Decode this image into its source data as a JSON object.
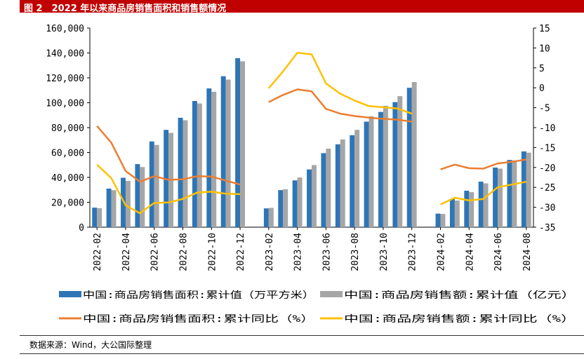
{
  "header": {
    "title": "图 2　2022 年以来商品房销售面积和销售额情况"
  },
  "footer": {
    "source": "数据来源：Wind，大公国际整理"
  },
  "colors": {
    "title_bar": "#c00000",
    "area_bar": "#2e75b6",
    "sales_bar": "#a6a6a6",
    "area_line": "#ed7d31",
    "sales_line": "#ffc000"
  },
  "chart_data": {
    "type": "bar",
    "title": "",
    "x_labels": [
      "2022-02",
      "2022-04",
      "2022-06",
      "2022-08",
      "2022-10",
      "2022-12",
      "2023-02",
      "2023-04",
      "2023-06",
      "2023-08",
      "2023-10",
      "2023-12",
      "2024-02",
      "2024-04",
      "2024-06",
      "2024-08"
    ],
    "x": [
      "2022-02",
      "2022-03",
      "2022-04",
      "2022-05",
      "2022-06",
      "2022-07",
      "2022-08",
      "2022-09",
      "2022-10",
      "2022-11",
      "2022-12",
      "2023-01",
      "2023-02",
      "2023-03",
      "2023-04",
      "2023-05",
      "2023-06",
      "2023-07",
      "2023-08",
      "2023-09",
      "2023-10",
      "2023-11",
      "2023-12",
      "2024-01",
      "2024-02",
      "2024-03",
      "2024-04",
      "2024-05",
      "2024-06",
      "2024-07",
      "2024-08"
    ],
    "y_left": {
      "ticks": [
        "0",
        "20,000",
        "40,000",
        "60,000",
        "80,000",
        "100,000",
        "120,000",
        "140,000",
        "160,000"
      ],
      "range": [
        0,
        160000
      ]
    },
    "y_right": {
      "ticks": [
        "15",
        "10",
        "5",
        "0",
        "-5",
        "-10",
        "-15",
        "-20",
        "-25",
        "-30",
        "-35"
      ],
      "range": [
        -35,
        15
      ]
    },
    "legend_position": "bottom",
    "series": [
      {
        "name": "中国:商品房销售面积:累计值（万平方米）",
        "type": "bar",
        "axis": "left",
        "values": [
          15700,
          31000,
          39700,
          50700,
          68900,
          78200,
          87900,
          101400,
          111500,
          121300,
          135800,
          null,
          15100,
          29800,
          37600,
          46400,
          59500,
          66600,
          73900,
          84800,
          92600,
          100500,
          112000,
          null,
          10900,
          22700,
          29300,
          36600,
          47900,
          54000,
          60900
        ]
      },
      {
        "name": "中国:商品房销售额:累计值（亿元）",
        "type": "bar",
        "axis": "left",
        "values": [
          15300,
          29700,
          37200,
          48300,
          66100,
          75800,
          85900,
          99400,
          108800,
          118600,
          133300,
          null,
          15500,
          30500,
          39900,
          49900,
          63100,
          70500,
          78200,
          89100,
          97600,
          105300,
          116600,
          null,
          10600,
          21400,
          28100,
          35200,
          47100,
          53700,
          59900
        ]
      },
      {
        "name": "中国:商品房销售面积:累计同比（%）",
        "type": "line",
        "axis": "right",
        "values": [
          -9.6,
          -13.8,
          -20.9,
          -23.6,
          -22.2,
          -23.1,
          -23.0,
          -22.2,
          -22.3,
          -23.3,
          -24.3,
          null,
          -3.6,
          -1.8,
          -0.4,
          -0.9,
          -5.3,
          -6.5,
          -7.1,
          -7.5,
          -7.8,
          -8.0,
          -8.5,
          null,
          -20.5,
          -19.3,
          -20.2,
          -20.3,
          -19.0,
          -18.6,
          -18.0
        ]
      },
      {
        "name": "中国:商品房销售额:累计同比（%）",
        "type": "line",
        "axis": "right",
        "values": [
          -19.3,
          -22.7,
          -29.5,
          -31.5,
          -28.9,
          -28.8,
          -27.9,
          -26.3,
          -26.1,
          -26.6,
          -26.7,
          null,
          -0.1,
          4.1,
          8.8,
          8.4,
          1.1,
          -1.5,
          -3.2,
          -4.6,
          -4.9,
          -5.2,
          -6.5,
          null,
          -29.3,
          -27.6,
          -28.3,
          -27.9,
          -25.0,
          -24.3,
          -23.6
        ]
      }
    ]
  }
}
